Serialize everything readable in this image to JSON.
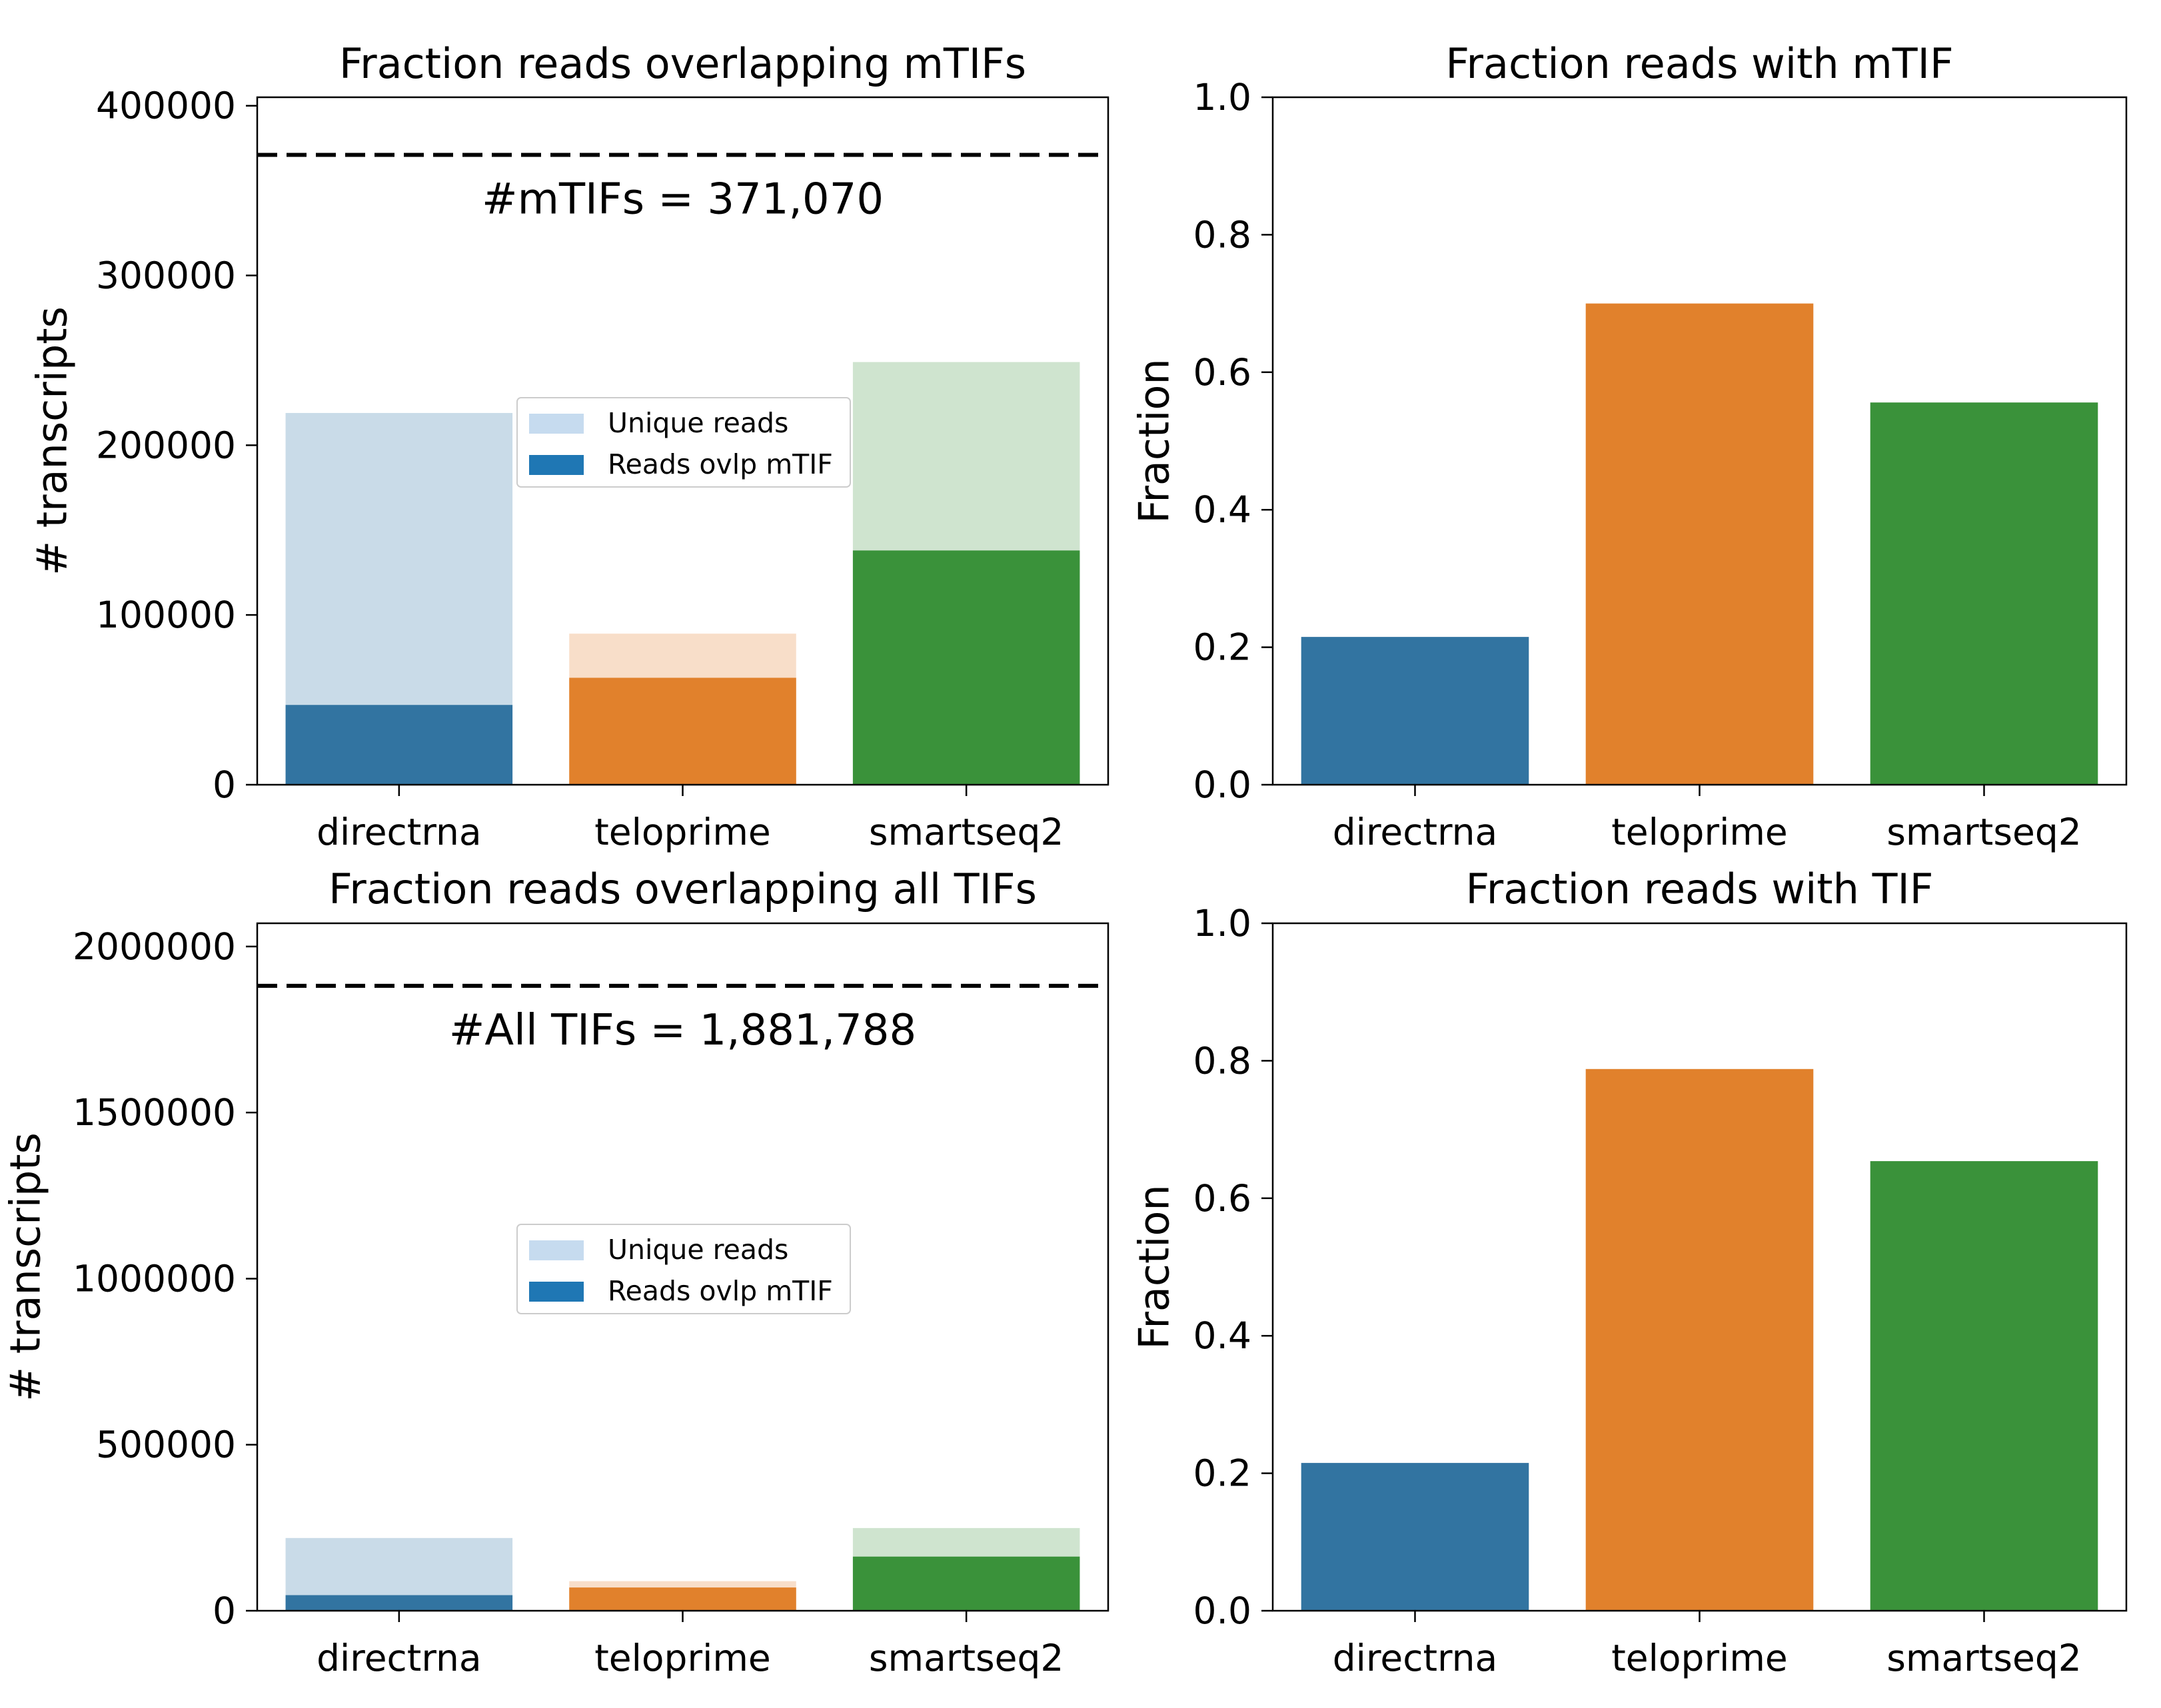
{
  "chart_data": [
    {
      "type": "bar",
      "stacked_overlay": true,
      "title": "Fraction reads overlapping mTIFs",
      "ylabel": "# transcripts",
      "xlabel": "",
      "categories": [
        "directrna",
        "teloprime",
        "smartseq2"
      ],
      "ylim": [
        0,
        405000
      ],
      "yticks": [
        0,
        100000,
        200000,
        300000,
        400000
      ],
      "series": [
        {
          "name": "Unique reads",
          "values": [
            219000,
            89000,
            249000
          ]
        },
        {
          "name": "Reads ovlp mTIF",
          "values": [
            47000,
            63000,
            138000
          ]
        }
      ],
      "reference_line": {
        "value": 371070,
        "style": "dashed"
      },
      "annotation": "#mTIFs = 371,070",
      "legend": {
        "position": "center",
        "entries": [
          "Unique reads",
          "Reads ovlp mTIF"
        ],
        "colors": [
          "#c6dbef",
          "#1f77b4"
        ]
      },
      "bar_colors": {
        "solid": [
          "#3274a1",
          "#e1812c",
          "#3a923a"
        ],
        "light": [
          "#c9dbe8",
          "#f8dec9",
          "#cfe4cf"
        ]
      }
    },
    {
      "type": "bar",
      "title": "Fraction reads with mTIF",
      "ylabel": "Fraction",
      "xlabel": "",
      "categories": [
        "directrna",
        "teloprime",
        "smartseq2"
      ],
      "ylim": [
        0,
        1.0
      ],
      "yticks": [
        "0.0",
        "0.2",
        "0.4",
        "0.6",
        "0.8",
        "1.0"
      ],
      "values": [
        0.215,
        0.7,
        0.556
      ],
      "bar_colors": [
        "#3274a1",
        "#e1812c",
        "#3a923a"
      ]
    },
    {
      "type": "bar",
      "stacked_overlay": true,
      "title": "Fraction reads overlapping all TIFs",
      "ylabel": "# transcripts",
      "xlabel": "",
      "categories": [
        "directrna",
        "teloprime",
        "smartseq2"
      ],
      "ylim": [
        0,
        2070000
      ],
      "yticks": [
        0,
        500000,
        1000000,
        1500000,
        2000000
      ],
      "series": [
        {
          "name": "Unique reads",
          "values": [
            219000,
            89000,
            249000
          ]
        },
        {
          "name": "Reads ovlp mTIF",
          "values": [
            47000,
            70000,
            163000
          ]
        }
      ],
      "reference_line": {
        "value": 1881788,
        "style": "dashed"
      },
      "annotation": "#All TIFs = 1,881,788",
      "legend": {
        "position": "center",
        "entries": [
          "Unique reads",
          "Reads ovlp mTIF"
        ],
        "colors": [
          "#c6dbef",
          "#1f77b4"
        ]
      },
      "bar_colors": {
        "solid": [
          "#3274a1",
          "#e1812c",
          "#3a923a"
        ],
        "light": [
          "#c9dbe8",
          "#f8dec9",
          "#cfe4cf"
        ]
      }
    },
    {
      "type": "bar",
      "title": "Fraction reads with TIF",
      "ylabel": "Fraction",
      "xlabel": "",
      "categories": [
        "directrna",
        "teloprime",
        "smartseq2"
      ],
      "ylim": [
        0,
        1.0
      ],
      "yticks": [
        "0.0",
        "0.2",
        "0.4",
        "0.6",
        "0.8",
        "1.0"
      ],
      "values": [
        0.215,
        0.788,
        0.654
      ],
      "bar_colors": [
        "#3274a1",
        "#e1812c",
        "#3a923a"
      ]
    }
  ]
}
